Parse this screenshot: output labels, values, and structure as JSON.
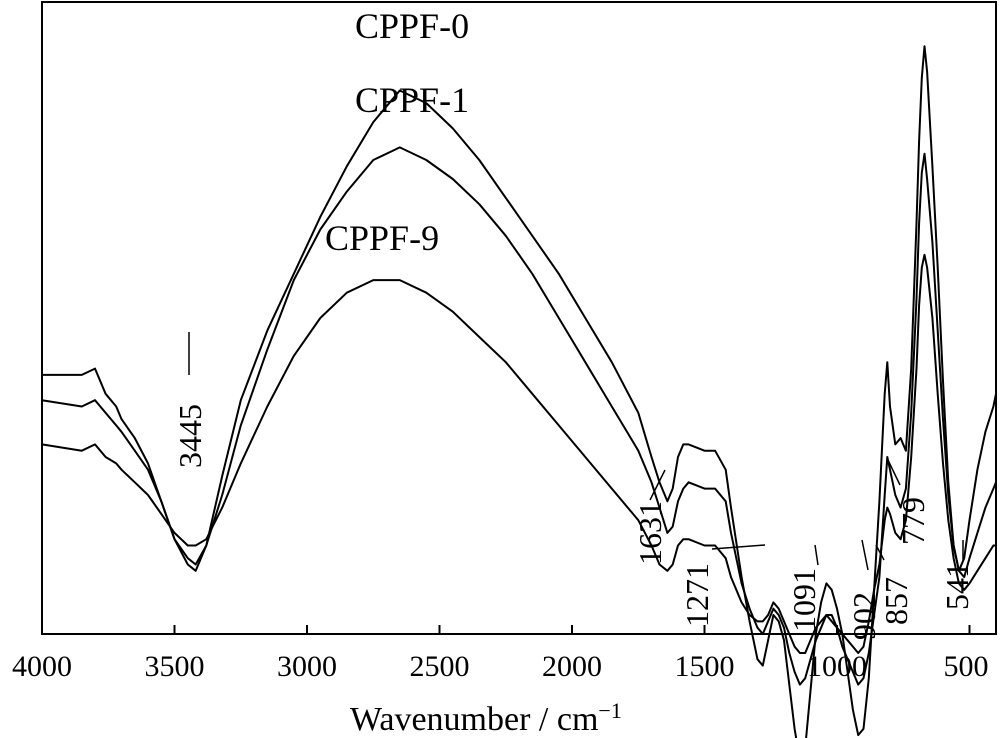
{
  "chart_data": {
    "type": "line",
    "title": "",
    "xlabel": "Wavenumber / cm",
    "xlabel_sup": "−1",
    "ylabel": "",
    "xlim": [
      4000,
      400
    ],
    "x_reversed": true,
    "x_ticks": [
      "4000",
      "3500",
      "3000",
      "2500",
      "2000",
      "1500",
      "1000",
      "500"
    ],
    "y_ticks": [],
    "grid": false,
    "legend": "none",
    "series": [
      {
        "name": "CPPF-0",
        "x": [
          4000,
          3850,
          3800,
          3780,
          3760,
          3720,
          3700,
          3650,
          3600,
          3550,
          3500,
          3450,
          3420,
          3380,
          3320,
          3250,
          3150,
          3050,
          2950,
          2850,
          2750,
          2650,
          2550,
          2450,
          2350,
          2250,
          2150,
          2050,
          1950,
          1850,
          1750,
          1700,
          1670,
          1640,
          1620,
          1600,
          1580,
          1560,
          1500,
          1460,
          1420,
          1400,
          1360,
          1330,
          1300,
          1280,
          1260,
          1240,
          1220,
          1200,
          1180,
          1160,
          1140,
          1120,
          1100,
          1080,
          1060,
          1040,
          1020,
          1000,
          980,
          960,
          940,
          920,
          900,
          880,
          860,
          840,
          820,
          810,
          800,
          780,
          760,
          740,
          720,
          700,
          690,
          680,
          670,
          660,
          640,
          620,
          600,
          580,
          560,
          540,
          520,
          500,
          470,
          440,
          410,
          400
        ],
        "y": [
          59,
          59,
          58,
          60,
          62,
          64,
          66,
          69,
          73,
          79,
          85,
          89,
          90,
          86,
          75,
          63,
          52,
          43,
          34,
          26,
          19,
          14,
          16,
          20,
          25,
          31,
          37,
          43,
          50,
          57,
          65,
          72,
          76,
          79,
          77,
          72,
          70,
          70,
          71,
          71,
          74,
          80,
          91,
          98,
          104,
          105,
          101,
          97,
          98,
          101,
          108,
          115,
          120,
          118,
          109,
          100,
          95,
          92,
          93,
          96,
          100,
          106,
          112,
          116,
          115,
          107,
          93,
          79,
          62,
          57,
          64,
          70,
          69,
          71,
          58,
          35,
          22,
          12,
          7,
          11,
          26,
          42,
          60,
          76,
          86,
          90,
          88,
          82,
          74,
          68,
          64,
          62
        ]
      },
      {
        "name": "CPPF-1",
        "x": [
          4000,
          3850,
          3800,
          3780,
          3760,
          3720,
          3700,
          3650,
          3600,
          3550,
          3500,
          3450,
          3420,
          3380,
          3320,
          3250,
          3150,
          3050,
          2950,
          2850,
          2750,
          2650,
          2550,
          2450,
          2350,
          2250,
          2150,
          2050,
          1950,
          1850,
          1750,
          1700,
          1670,
          1640,
          1620,
          1600,
          1580,
          1560,
          1500,
          1460,
          1420,
          1400,
          1360,
          1330,
          1300,
          1280,
          1260,
          1240,
          1220,
          1200,
          1180,
          1160,
          1140,
          1120,
          1100,
          1080,
          1060,
          1040,
          1020,
          1000,
          980,
          960,
          940,
          920,
          900,
          880,
          860,
          840,
          820,
          810,
          800,
          780,
          760,
          740,
          720,
          700,
          690,
          680,
          670,
          660,
          640,
          620,
          600,
          580,
          560,
          540,
          520,
          500,
          470,
          440,
          410,
          400
        ],
        "y": [
          63,
          64,
          63,
          64,
          65,
          67,
          68,
          71,
          74,
          79,
          85,
          88,
          89,
          86,
          78,
          67,
          55,
          44,
          36,
          30,
          25,
          23,
          25,
          28,
          32,
          37,
          43,
          50,
          57,
          64,
          71,
          76,
          80,
          84,
          83,
          79,
          77,
          76,
          77,
          77,
          79,
          84,
          92,
          96,
          99,
          100,
          98,
          96,
          97,
          99,
          103,
          106,
          108,
          107,
          104,
          101,
          99,
          97,
          97,
          99,
          102,
          104,
          106,
          108,
          107,
          103,
          97,
          91,
          78,
          72,
          74,
          78,
          80,
          77,
          65,
          47,
          35,
          27,
          24,
          28,
          38,
          52,
          66,
          78,
          86,
          90,
          91,
          88,
          84,
          80,
          77,
          76
        ]
      },
      {
        "name": "CPPF-9",
        "x": [
          4000,
          3850,
          3800,
          3780,
          3760,
          3720,
          3700,
          3650,
          3600,
          3550,
          3500,
          3450,
          3420,
          3380,
          3320,
          3250,
          3150,
          3050,
          2950,
          2850,
          2750,
          2650,
          2550,
          2450,
          2350,
          2250,
          2150,
          2050,
          1950,
          1850,
          1750,
          1700,
          1670,
          1640,
          1620,
          1600,
          1580,
          1560,
          1500,
          1460,
          1420,
          1400,
          1360,
          1330,
          1300,
          1280,
          1260,
          1240,
          1220,
          1200,
          1180,
          1160,
          1140,
          1120,
          1100,
          1080,
          1060,
          1040,
          1020,
          1000,
          980,
          960,
          940,
          920,
          900,
          880,
          860,
          840,
          820,
          810,
          800,
          780,
          760,
          740,
          720,
          700,
          690,
          680,
          670,
          660,
          640,
          620,
          600,
          580,
          560,
          540,
          520,
          500,
          470,
          440,
          410,
          400
        ],
        "y": [
          70,
          71,
          70,
          71,
          72,
          73,
          74,
          76,
          78,
          81,
          84,
          86,
          86,
          85,
          80,
          73,
          64,
          56,
          50,
          46,
          44,
          44,
          46,
          49,
          53,
          57,
          62,
          67,
          72,
          77,
          82,
          86,
          89,
          90,
          89,
          86,
          85,
          85,
          86,
          86,
          88,
          91,
          95,
          97,
          98,
          98,
          97,
          95,
          96,
          98,
          100,
          102,
          103,
          103,
          101,
          99,
          98,
          97,
          98,
          99,
          100,
          101,
          102,
          103,
          102,
          98,
          93,
          89,
          82,
          80,
          81,
          84,
          85,
          82,
          72,
          58,
          48,
          42,
          40,
          42,
          50,
          62,
          73,
          82,
          88,
          92,
          93,
          92,
          90,
          88,
          86,
          86
        ]
      }
    ],
    "series_labels": [
      "CPPF-0",
      "CPPF-1",
      "CPPF-9"
    ],
    "annotations": [
      "3445",
      "1631",
      "1271",
      "1091",
      "902",
      "857",
      "779",
      "541"
    ]
  }
}
